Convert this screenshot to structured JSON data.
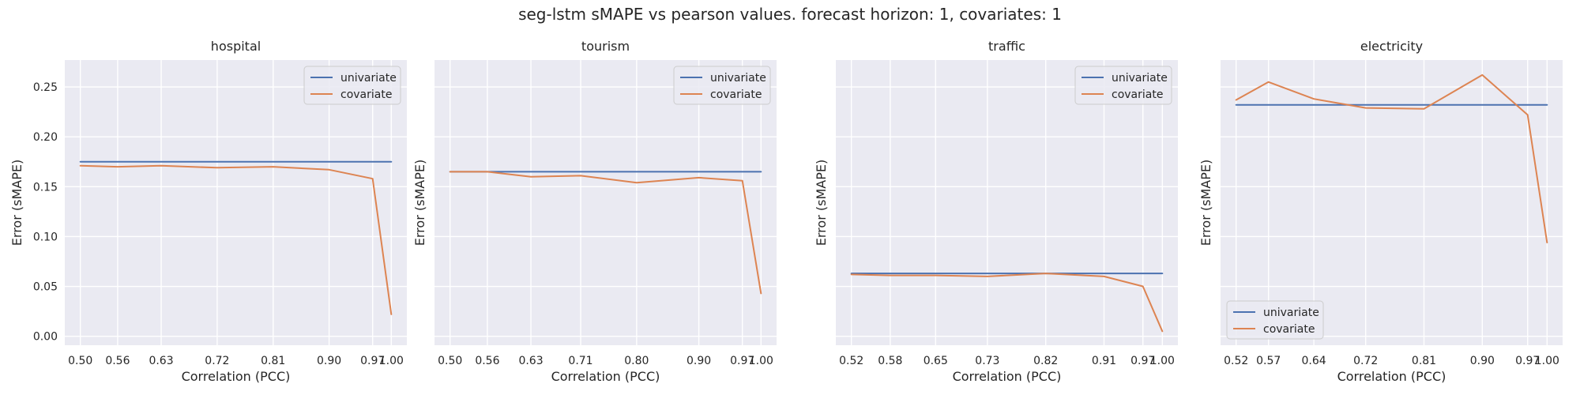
{
  "figure": {
    "title": "seg-lstm  sMAPE vs pearson values. forecast horizon: 1, covariates: 1"
  },
  "colors": {
    "univariate": "#4c72b0",
    "covariate": "#dd8452",
    "background": "#eaeaf2",
    "grid": "#ffffff"
  },
  "chart_data": [
    {
      "type": "line",
      "title": "hospital",
      "xlabel": "Correlation (PCC)",
      "ylabel": "Error (sMAPE)",
      "x": [
        0.5,
        0.56,
        0.63,
        0.72,
        0.81,
        0.9,
        0.97,
        1.0
      ],
      "xtick_labels": [
        "0.50",
        "0.56",
        "0.63",
        "0.72",
        "0.81",
        "0.90",
        "0.97",
        "1.00"
      ],
      "yticks": [
        0.0,
        0.05,
        0.1,
        0.15,
        0.2,
        0.25
      ],
      "ytick_labels": [
        "0.00",
        "0.05",
        "0.10",
        "0.15",
        "0.20",
        "0.25"
      ],
      "ylim": [
        -0.009,
        0.277
      ],
      "grid": true,
      "legend": "top-right",
      "series": [
        {
          "name": "univariate",
          "values": [
            0.175,
            0.175,
            0.175,
            0.175,
            0.175,
            0.175,
            0.175,
            0.175
          ]
        },
        {
          "name": "covariate",
          "values": [
            0.171,
            0.17,
            0.171,
            0.169,
            0.17,
            0.167,
            0.158,
            0.022
          ]
        }
      ]
    },
    {
      "type": "line",
      "title": "tourism",
      "xlabel": "Correlation (PCC)",
      "ylabel": "Error (sMAPE)",
      "x": [
        0.5,
        0.56,
        0.63,
        0.71,
        0.8,
        0.9,
        0.97,
        1.0
      ],
      "xtick_labels": [
        "0.50",
        "0.56",
        "0.63",
        "0.71",
        "0.80",
        "0.90",
        "0.97",
        "1.00"
      ],
      "ylim": [
        -0.009,
        0.277
      ],
      "grid": true,
      "legend": "top-right",
      "series": [
        {
          "name": "univariate",
          "values": [
            0.165,
            0.165,
            0.165,
            0.165,
            0.165,
            0.165,
            0.165,
            0.165
          ]
        },
        {
          "name": "covariate",
          "values": [
            0.165,
            0.165,
            0.16,
            0.161,
            0.154,
            0.159,
            0.156,
            0.043
          ]
        }
      ]
    },
    {
      "type": "line",
      "title": "traffic",
      "xlabel": "Correlation (PCC)",
      "ylabel": "Error (sMAPE)",
      "x": [
        0.52,
        0.58,
        0.65,
        0.73,
        0.82,
        0.91,
        0.97,
        1.0
      ],
      "xtick_labels": [
        "0.52",
        "0.58",
        "0.65",
        "0.73",
        "0.82",
        "0.91",
        "0.97",
        "1.00"
      ],
      "ylim": [
        -0.009,
        0.277
      ],
      "grid": true,
      "legend": "top-right",
      "series": [
        {
          "name": "univariate",
          "values": [
            0.063,
            0.063,
            0.063,
            0.063,
            0.063,
            0.063,
            0.063,
            0.063
          ]
        },
        {
          "name": "covariate",
          "values": [
            0.062,
            0.061,
            0.061,
            0.06,
            0.063,
            0.06,
            0.05,
            0.005
          ]
        }
      ]
    },
    {
      "type": "line",
      "title": "electricity",
      "xlabel": "Correlation (PCC)",
      "ylabel": "Error (sMAPE)",
      "x": [
        0.52,
        0.57,
        0.64,
        0.72,
        0.81,
        0.9,
        0.97,
        1.0
      ],
      "xtick_labels": [
        "0.52",
        "0.57",
        "0.64",
        "0.72",
        "0.81",
        "0.90",
        "0.97",
        "1.00"
      ],
      "ylim": [
        -0.009,
        0.277
      ],
      "grid": true,
      "legend": "bottom-left",
      "series": [
        {
          "name": "univariate",
          "values": [
            0.232,
            0.232,
            0.232,
            0.232,
            0.232,
            0.232,
            0.232,
            0.232
          ]
        },
        {
          "name": "covariate",
          "values": [
            0.237,
            0.255,
            0.238,
            0.229,
            0.228,
            0.262,
            0.222,
            0.094
          ]
        }
      ]
    }
  ]
}
